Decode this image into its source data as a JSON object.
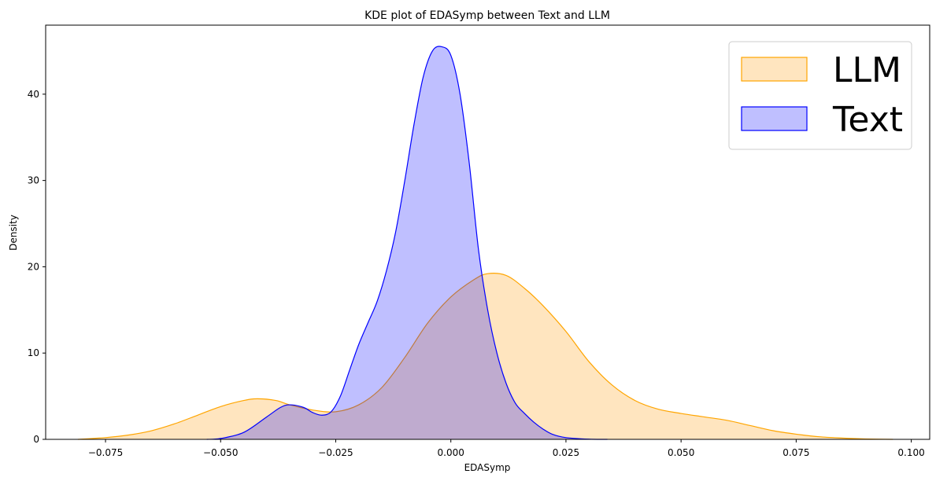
{
  "chart_data": {
    "type": "area",
    "title": "KDE plot of EDASymp between Text and LLM",
    "xlabel": "EDASymp",
    "ylabel": "Density",
    "xlim": [
      -0.088,
      0.104
    ],
    "ylim": [
      0,
      48
    ],
    "xticks": [
      -0.075,
      -0.05,
      -0.025,
      0.0,
      0.025,
      0.05,
      0.075,
      0.1
    ],
    "xtick_labels": [
      "−0.075",
      "−0.050",
      "−0.025",
      "0.000",
      "0.025",
      "0.050",
      "0.075",
      "0.100"
    ],
    "yticks": [
      0,
      10,
      20,
      30,
      40
    ],
    "ytick_labels": [
      "0",
      "10",
      "20",
      "30",
      "40"
    ],
    "grid": false,
    "legend_position": "top-right",
    "series": [
      {
        "name": "LLM",
        "fill": "#ffe5bf",
        "stroke": "#ffa500",
        "fill_opacity": 1,
        "x": [
          -0.081,
          -0.075,
          -0.07,
          -0.065,
          -0.06,
          -0.055,
          -0.05,
          -0.045,
          -0.042,
          -0.038,
          -0.035,
          -0.03,
          -0.025,
          -0.02,
          -0.015,
          -0.01,
          -0.005,
          0.0,
          0.005,
          0.008,
          0.012,
          0.016,
          0.02,
          0.025,
          0.03,
          0.035,
          0.04,
          0.045,
          0.05,
          0.055,
          0.06,
          0.065,
          0.07,
          0.075,
          0.08,
          0.085,
          0.09,
          0.096
        ],
        "y": [
          0.0,
          0.2,
          0.5,
          1.0,
          1.8,
          2.8,
          3.8,
          4.5,
          4.7,
          4.5,
          4.0,
          3.4,
          3.2,
          4.0,
          6.0,
          9.5,
          13.5,
          16.5,
          18.5,
          19.2,
          19.0,
          17.5,
          15.5,
          12.5,
          9.0,
          6.3,
          4.5,
          3.5,
          3.0,
          2.6,
          2.2,
          1.6,
          1.0,
          0.6,
          0.3,
          0.15,
          0.05,
          0.0
        ]
      },
      {
        "name": "Text",
        "fill": "#0000ff",
        "stroke": "#0000ff",
        "fill_opacity": 0.25,
        "x": [
          -0.053,
          -0.05,
          -0.045,
          -0.04,
          -0.037,
          -0.035,
          -0.032,
          -0.03,
          -0.028,
          -0.026,
          -0.024,
          -0.022,
          -0.02,
          -0.018,
          -0.016,
          -0.014,
          -0.012,
          -0.01,
          -0.008,
          -0.006,
          -0.004,
          -0.002,
          0.0,
          0.002,
          0.004,
          0.006,
          0.008,
          0.01,
          0.012,
          0.014,
          0.016,
          0.018,
          0.02,
          0.022,
          0.025,
          0.03,
          0.034
        ],
        "y": [
          0.0,
          0.1,
          0.8,
          2.6,
          3.7,
          4.0,
          3.7,
          3.1,
          2.8,
          3.2,
          5.0,
          8.0,
          11.0,
          13.5,
          16.0,
          19.5,
          24.0,
          30.0,
          36.5,
          42.0,
          45.0,
          45.5,
          44.5,
          40.0,
          32.0,
          22.0,
          15.0,
          10.0,
          6.5,
          4.2,
          3.0,
          2.0,
          1.2,
          0.6,
          0.2,
          0.02,
          0.0
        ]
      }
    ]
  }
}
